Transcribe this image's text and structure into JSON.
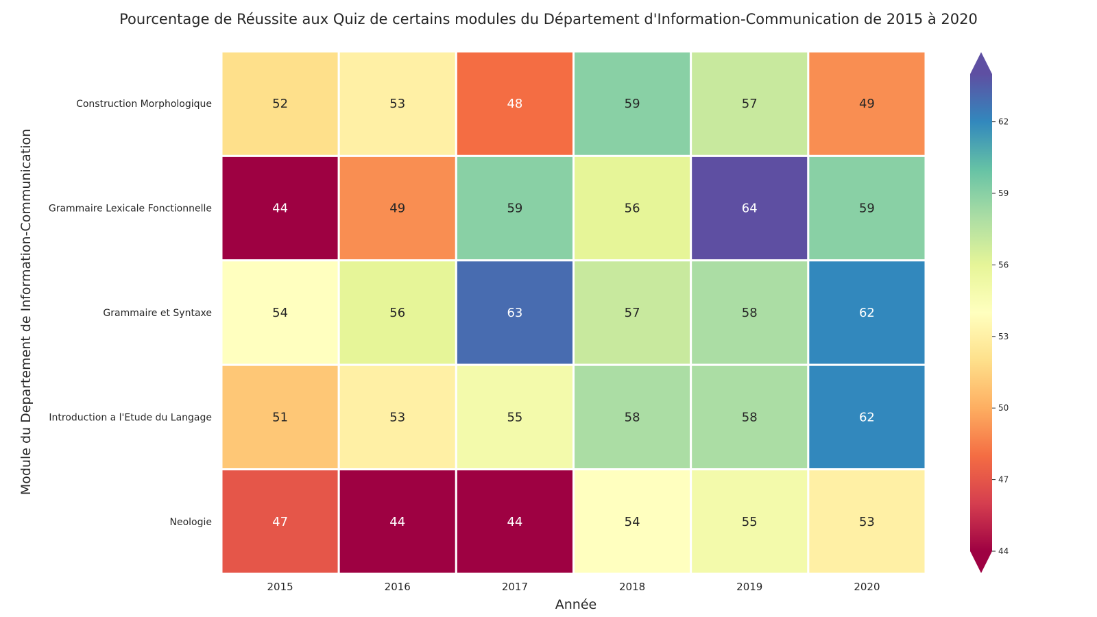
{
  "chart_data": {
    "type": "heatmap",
    "title": "Pourcentage de Réussite aux Quiz de certains modules du Département d'Information-Communication de 2015 à 2020",
    "xlabel": "Année",
    "ylabel": "Module du Departement de Information-Communication",
    "x": [
      "2015",
      "2016",
      "2017",
      "2018",
      "2019",
      "2020"
    ],
    "y": [
      "Construction Morphologique",
      "Grammaire Lexicale Fonctionnelle",
      "Grammaire et Syntaxe",
      "Introduction a l'Etude du Langage",
      "Neologie"
    ],
    "values": [
      [
        52,
        53,
        48,
        59,
        57,
        49
      ],
      [
        44,
        49,
        59,
        56,
        64,
        59
      ],
      [
        54,
        56,
        63,
        57,
        58,
        62
      ],
      [
        51,
        53,
        55,
        58,
        58,
        62
      ],
      [
        47,
        44,
        44,
        54,
        55,
        53
      ]
    ],
    "colorbar": {
      "colormap": "Spectral",
      "vmin": 44,
      "vmax": 64,
      "ticks": [
        44,
        47,
        50,
        53,
        56,
        59,
        62
      ],
      "extend": "both"
    },
    "annotated": true
  }
}
